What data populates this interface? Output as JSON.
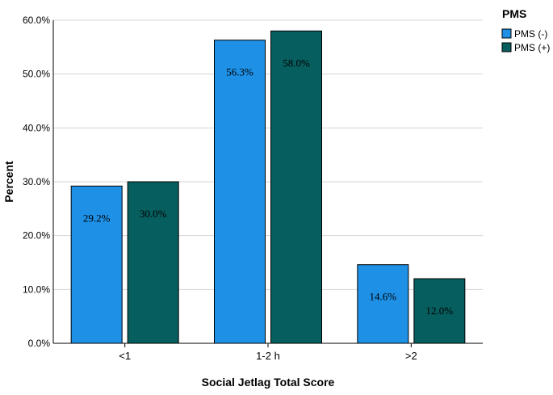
{
  "chart_data": {
    "type": "bar",
    "categories": [
      "<1",
      "1-2 h",
      ">2"
    ],
    "series": [
      {
        "name": "PMS (-)",
        "values": [
          29.2,
          56.3,
          14.6
        ],
        "labels": [
          "29.2%",
          "56.3%",
          "14.6%"
        ],
        "color": "#1e90e6"
      },
      {
        "name": "PMS (+)",
        "values": [
          30.0,
          58.0,
          12.0
        ],
        "labels": [
          "30.0%",
          "58.0%",
          "12.0%"
        ],
        "color": "#075e5e"
      }
    ],
    "xlabel": "Social Jetlag Total Score",
    "ylabel": "Percent",
    "ylim": [
      0,
      60
    ],
    "yticks": [
      0,
      10,
      20,
      30,
      40,
      50,
      60
    ],
    "ytick_labels": [
      "0.0%",
      "10.0%",
      "20.0%",
      "30.0%",
      "40.0%",
      "50.0%",
      "60.0%"
    ],
    "grid": true,
    "legend": {
      "title": "PMS",
      "placement": "top-right"
    }
  }
}
